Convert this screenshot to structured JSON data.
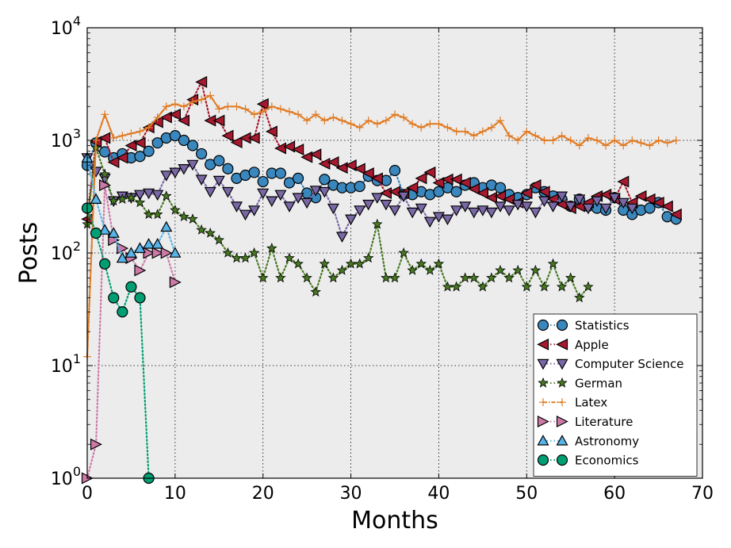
{
  "chart_data": {
    "type": "line",
    "title": "",
    "xlabel": "Months",
    "ylabel": "Posts",
    "yscale": "log",
    "xlim": [
      0,
      70
    ],
    "ylim": [
      1,
      10000
    ],
    "xticks": [
      "0",
      "10",
      "20",
      "30",
      "40",
      "50",
      "60",
      "70"
    ],
    "yticks": [
      {
        "base": "10",
        "exp": "0"
      },
      {
        "base": "10",
        "exp": "1"
      },
      {
        "base": "10",
        "exp": "2"
      },
      {
        "base": "10",
        "exp": "3"
      },
      {
        "base": "10",
        "exp": "4"
      }
    ],
    "grid": true,
    "legend_position": "lower-right",
    "series": [
      {
        "name": "Statistics",
        "marker": "circle",
        "color": "#3a87bd",
        "values": [
          600,
          950,
          790,
          700,
          760,
          700,
          720,
          800,
          950,
          1050,
          1100,
          1000,
          900,
          760,
          610,
          660,
          560,
          460,
          490,
          520,
          430,
          510,
          510,
          420,
          460,
          340,
          310,
          450,
          400,
          380,
          380,
          390,
          480,
          440,
          440,
          540,
          330,
          330,
          350,
          330,
          350,
          380,
          350,
          400,
          420,
          380,
          400,
          380,
          330,
          310,
          330,
          380,
          350,
          320,
          300,
          260,
          300,
          260,
          250,
          240,
          310,
          240,
          220,
          240,
          250,
          280,
          210,
          200
        ]
      },
      {
        "name": "Apple",
        "marker": "left-triangle",
        "color": "#a6192e",
        "values": [
          200,
          970,
          1050,
          640,
          700,
          900,
          950,
          1300,
          1450,
          1600,
          1700,
          1500,
          2300,
          3300,
          1500,
          1500,
          1100,
          960,
          1050,
          1050,
          2100,
          1200,
          850,
          880,
          830,
          710,
          750,
          620,
          640,
          570,
          600,
          560,
          510,
          460,
          340,
          350,
          340,
          380,
          460,
          520,
          420,
          450,
          450,
          420,
          370,
          340,
          310,
          320,
          300,
          280,
          340,
          400,
          350,
          300,
          270,
          250,
          260,
          280,
          320,
          330,
          300,
          430,
          280,
          320,
          300,
          280,
          260,
          220
        ]
      },
      {
        "name": "Computer Science",
        "marker": "down-triangle",
        "color": "#7a68a6",
        "values": [
          700,
          530,
          460,
          290,
          320,
          310,
          330,
          340,
          330,
          490,
          520,
          560,
          610,
          450,
          350,
          440,
          350,
          260,
          220,
          240,
          340,
          290,
          330,
          260,
          310,
          280,
          360,
          350,
          250,
          140,
          200,
          240,
          270,
          310,
          270,
          240,
          320,
          230,
          250,
          190,
          210,
          200,
          240,
          260,
          230,
          240,
          230,
          260,
          240,
          270,
          260,
          230,
          290,
          260,
          320,
          260,
          300,
          250,
          290,
          250,
          310,
          280,
          250
        ]
      },
      {
        "name": "German",
        "marker": "star",
        "color": "#467821",
        "values": [
          180,
          860,
          500,
          290,
          300,
          310,
          280,
          220,
          220,
          320,
          240,
          210,
          200,
          160,
          150,
          130,
          100,
          90,
          90,
          100,
          60,
          110,
          60,
          90,
          80,
          60,
          45,
          80,
          60,
          70,
          80,
          80,
          90,
          180,
          60,
          60,
          100,
          70,
          80,
          70,
          80,
          50,
          50,
          60,
          60,
          50,
          60,
          70,
          60,
          70,
          50,
          70,
          50,
          80,
          50,
          60,
          40,
          50
        ]
      },
      {
        "name": "Latex",
        "marker": "plus",
        "color": "#e07b24",
        "values": [
          12,
          1000,
          1700,
          1050,
          1100,
          1150,
          1200,
          1300,
          1600,
          2000,
          2100,
          2000,
          2200,
          2300,
          2500,
          1900,
          2000,
          2000,
          1900,
          1700,
          1800,
          2000,
          1900,
          1800,
          1700,
          1500,
          1700,
          1500,
          1600,
          1500,
          1400,
          1300,
          1500,
          1400,
          1500,
          1700,
          1600,
          1400,
          1300,
          1400,
          1400,
          1300,
          1200,
          1200,
          1100,
          1200,
          1300,
          1500,
          1100,
          1000,
          1200,
          1100,
          1000,
          1000,
          1100,
          1000,
          900,
          1050,
          1000,
          900,
          1000,
          900,
          1000,
          950,
          900,
          1000,
          950,
          1000
        ]
      },
      {
        "name": "Literature",
        "marker": "right-triangle",
        "color": "#cc79a7",
        "values": [
          1,
          2,
          400,
          130,
          110,
          90,
          70,
          100,
          100,
          100,
          55
        ]
      },
      {
        "name": "Astronomy",
        "marker": "up-triangle",
        "color": "#56b4e9",
        "values": [
          700,
          300,
          160,
          150,
          90,
          100,
          110,
          120,
          120,
          170,
          100
        ]
      },
      {
        "name": "Economics",
        "marker": "circle",
        "color": "#009e73",
        "values": [
          250,
          150,
          80,
          40,
          30,
          50,
          40,
          1
        ]
      }
    ]
  }
}
